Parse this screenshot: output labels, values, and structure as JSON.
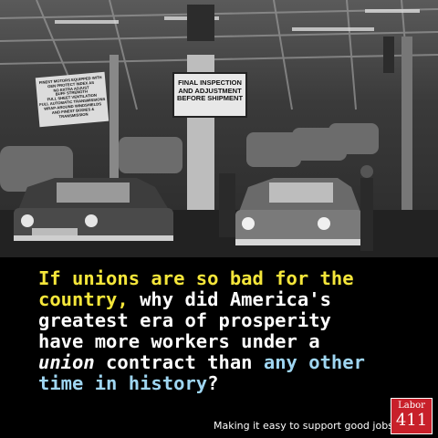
{
  "photo": {
    "sign_final": [
      "FINAL INSPECTION",
      "AND ADJUSTMENT",
      "BEFORE SHIPMENT"
    ],
    "sign_left": [
      "FINEST MOTORS EQUIPPED WITH",
      "GEN PROTECT INDEX AS",
      "NO EXTRA ADJUST",
      "BUFF STRENGTH",
      "FULL SHEET VENTILATION",
      "FULL AUTOMATIC TRANSMISSIONS",
      "WRAP-AROUND WINDSHIELDS",
      "AND FINEST BODIES & TRANSMISSION"
    ]
  },
  "caption": {
    "l1_yellow": "If unions are so bad for the",
    "l2_yellow": "country,",
    "l2_white": " why did America's",
    "l3": "greatest era of prosperity",
    "l4": "have more workers under a",
    "l5_italic": "union",
    "l5_white": " contract than ",
    "l5_blue": "any other",
    "l6_blue": "time in history",
    "l6_white": "?"
  },
  "tagline": "Making it easy to support good jobs",
  "logo": {
    "top": "Labor",
    "bottom": "411"
  },
  "colors": {
    "yellow": "#f5e63a",
    "blue": "#9fd6f2",
    "logo_red": "#c8202a"
  }
}
